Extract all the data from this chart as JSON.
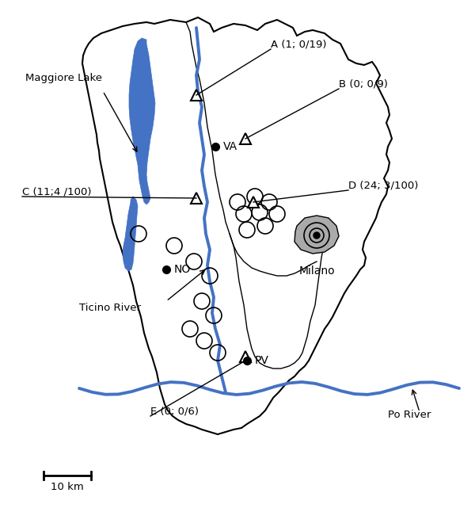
{
  "figsize": [
    6.0,
    6.41
  ],
  "dpi": 100,
  "bg_color": "#ffffff",
  "map_outline_color": "#000000",
  "river_color": "#4472C4",
  "lake_color": "#4472C4",
  "milan_gray": "#aaaaaa",
  "labels": {
    "A": "A (1; 0/19)",
    "B": "B (0; 0/9)",
    "C": "C (11;4 /100)",
    "D": "D (24; 3/100)",
    "E": "E (0; 0/6)"
  }
}
